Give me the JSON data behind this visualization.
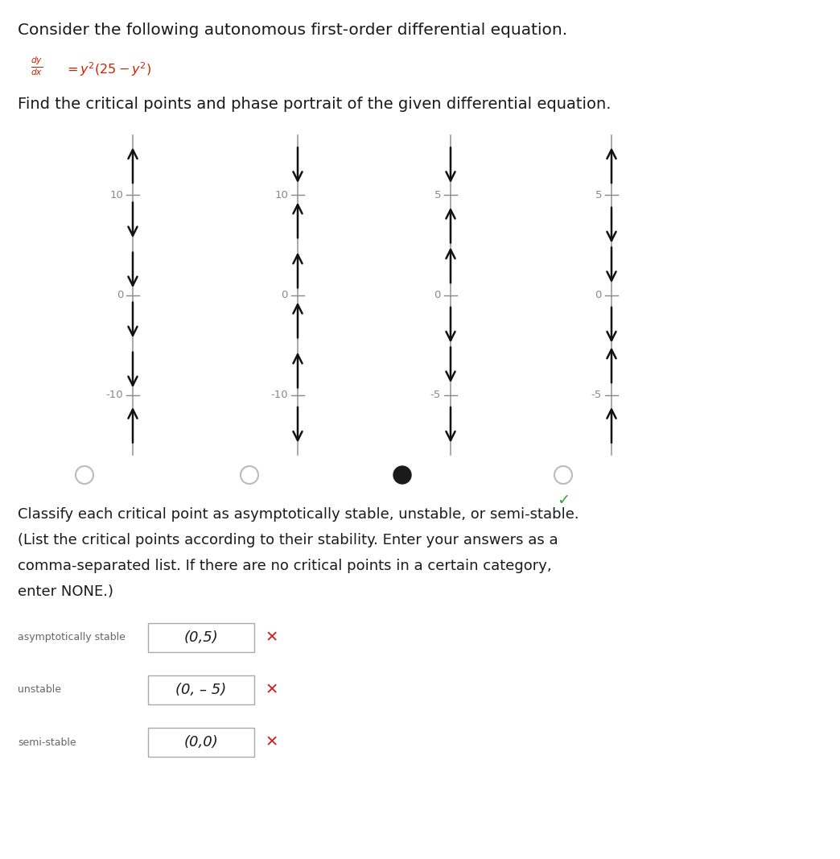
{
  "title_line1": "Consider the following autonomous first-order differential equation.",
  "subtitle": "Find the critical points and phase portrait of the given differential equation.",
  "stable_label": "asymptotically stable",
  "stable_value": "(0,5)",
  "unstable_label": "unstable",
  "unstable_value": "(0, – 5)",
  "semistable_label": "semi-stable",
  "semistable_value": "(0,0)",
  "phase_portraits": [
    {
      "ymin": -10,
      "ymax": 10,
      "arrows": [
        {
          "y": 13,
          "dir": 1
        },
        {
          "y": 7.5,
          "dir": -1
        },
        {
          "y": 2.5,
          "dir": -1
        },
        {
          "y": -2.5,
          "dir": -1
        },
        {
          "y": -7.5,
          "dir": -1
        },
        {
          "y": -13,
          "dir": 1
        }
      ],
      "ticks": [
        10,
        0,
        -10
      ],
      "radio_fill": false,
      "radio_dark": false,
      "correct": false
    },
    {
      "ymin": -10,
      "ymax": 10,
      "arrows": [
        {
          "y": 13,
          "dir": -1
        },
        {
          "y": 7.5,
          "dir": 1
        },
        {
          "y": 2.5,
          "dir": 1
        },
        {
          "y": -2.5,
          "dir": 1
        },
        {
          "y": -7.5,
          "dir": 1
        },
        {
          "y": -13,
          "dir": -1
        }
      ],
      "ticks": [
        10,
        0,
        -10
      ],
      "radio_fill": false,
      "radio_dark": false,
      "correct": false
    },
    {
      "ymin": -5,
      "ymax": 5,
      "arrows": [
        {
          "y": 6.5,
          "dir": -1
        },
        {
          "y": 3.5,
          "dir": 1
        },
        {
          "y": 1.5,
          "dir": 1
        },
        {
          "y": -1.5,
          "dir": -1
        },
        {
          "y": -3.5,
          "dir": -1
        },
        {
          "y": -6.5,
          "dir": -1
        }
      ],
      "ticks": [
        5,
        0,
        -5
      ],
      "radio_fill": true,
      "radio_dark": true,
      "correct": false
    },
    {
      "ymin": -5,
      "ymax": 5,
      "arrows": [
        {
          "y": 6.5,
          "dir": 1
        },
        {
          "y": 3.5,
          "dir": -1
        },
        {
          "y": 1.5,
          "dir": -1
        },
        {
          "y": -1.5,
          "dir": -1
        },
        {
          "y": -3.5,
          "dir": 1
        },
        {
          "y": -6.5,
          "dir": 1
        }
      ],
      "ticks": [
        5,
        0,
        -5
      ],
      "radio_fill": false,
      "radio_dark": false,
      "correct": true
    }
  ],
  "bg_color": "#ffffff",
  "text_color": "#1a1a1a",
  "axis_color": "#999999",
  "arrow_color": "#111111",
  "tick_color": "#888888",
  "check_color": "#33aa33",
  "radio_unsel_color": "#bbbbbb",
  "radio_sel_color": "#222222",
  "xmark_color": "#cc2222",
  "eq_color": "#cc2200"
}
